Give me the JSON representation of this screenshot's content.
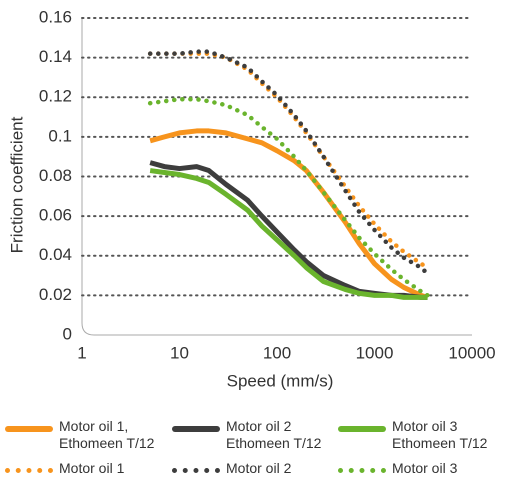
{
  "chart_data": {
    "type": "line",
    "x_label": "Speed (mm/s)",
    "y_label": "Friction coefficient",
    "x": [
      5,
      7,
      10,
      15,
      20,
      30,
      50,
      70,
      100,
      150,
      200,
      300,
      500,
      700,
      1000,
      1500,
      2000,
      3000,
      3500
    ],
    "xlim": [
      1,
      10000
    ],
    "xticks": [
      1,
      10,
      100,
      1000,
      10000
    ],
    "xscale": "log",
    "ylim": [
      0,
      0.16
    ],
    "yticks": [
      0,
      0.02,
      0.04,
      0.06,
      0.08,
      0.1,
      0.12,
      0.14,
      0.16
    ],
    "grid": true,
    "series": [
      {
        "name": "Motor oil 1, Ethomeen T/12",
        "color": "#f7941d",
        "dotted": false,
        "values": [
          0.098,
          0.1,
          0.102,
          0.103,
          0.103,
          0.102,
          0.099,
          0.097,
          0.093,
          0.088,
          0.083,
          0.072,
          0.057,
          0.046,
          0.036,
          0.028,
          0.024,
          0.02,
          0.019
        ]
      },
      {
        "name": "Motor oil 2 Ethomeen T/12",
        "color": "#3d3d3d",
        "dotted": false,
        "values": [
          0.087,
          0.085,
          0.084,
          0.085,
          0.083,
          0.076,
          0.068,
          0.06,
          0.052,
          0.043,
          0.037,
          0.03,
          0.025,
          0.022,
          0.021,
          0.02,
          0.02,
          0.019,
          0.019
        ]
      },
      {
        "name": "Motor oil 3 Ethomeen T/12",
        "color": "#6ab42d",
        "dotted": false,
        "values": [
          0.083,
          0.082,
          0.081,
          0.079,
          0.077,
          0.071,
          0.063,
          0.055,
          0.048,
          0.04,
          0.034,
          0.027,
          0.023,
          0.021,
          0.02,
          0.02,
          0.019,
          0.019,
          0.019
        ]
      },
      {
        "name": "Motor oil 1",
        "color": "#f7941d",
        "dotted": true,
        "values": [
          0.142,
          0.142,
          0.142,
          0.142,
          0.142,
          0.14,
          0.134,
          0.127,
          0.12,
          0.11,
          0.102,
          0.09,
          0.075,
          0.065,
          0.056,
          0.047,
          0.042,
          0.036,
          0.034
        ]
      },
      {
        "name": "Motor oil 2",
        "color": "#3d3d3d",
        "dotted": true,
        "values": [
          0.142,
          0.142,
          0.142,
          0.143,
          0.143,
          0.14,
          0.135,
          0.128,
          0.121,
          0.111,
          0.103,
          0.09,
          0.073,
          0.062,
          0.053,
          0.044,
          0.039,
          0.034,
          0.031
        ]
      },
      {
        "name": "Motor oil 3",
        "color": "#6ab42d",
        "dotted": true,
        "values": [
          0.117,
          0.118,
          0.119,
          0.119,
          0.118,
          0.116,
          0.111,
          0.105,
          0.099,
          0.09,
          0.083,
          0.072,
          0.058,
          0.049,
          0.041,
          0.033,
          0.028,
          0.022,
          0.02
        ]
      }
    ]
  }
}
